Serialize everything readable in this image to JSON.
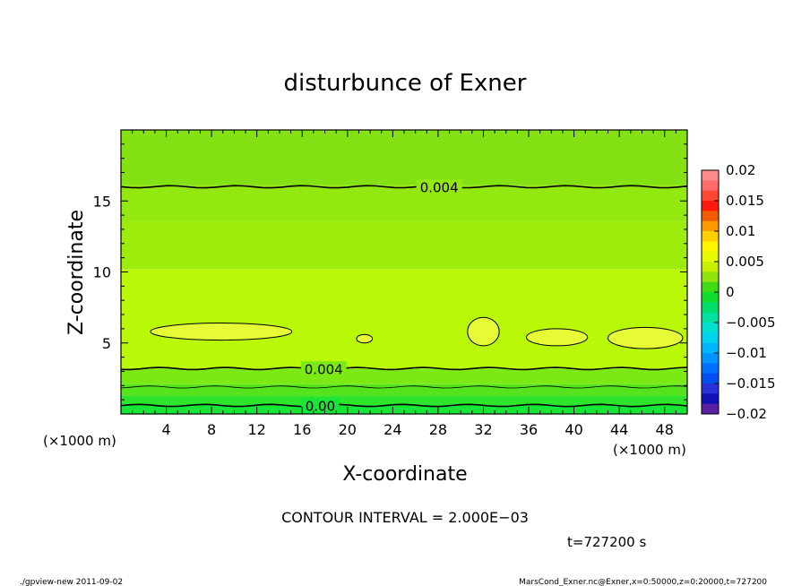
{
  "chart_data": {
    "type": "heatmap",
    "title": "disturbunce of Exner",
    "xlabel": "X-coordinate",
    "ylabel": "Z-coordinate",
    "x_unit": "(×1000 m)",
    "x_unit_right": "(×1000 m)",
    "xlim": [
      0,
      50
    ],
    "ylim": [
      0,
      20
    ],
    "xticks": [
      4,
      8,
      12,
      16,
      20,
      24,
      28,
      32,
      36,
      40,
      44,
      48
    ],
    "xtick_labels": [
      "4",
      "8",
      "12",
      "16",
      "20",
      "24",
      "28",
      "32",
      "36",
      "40",
      "44",
      "48"
    ],
    "yticks": [
      5,
      10,
      15
    ],
    "ytick_labels": [
      "5",
      "10",
      "15"
    ],
    "z_bands": [
      {
        "z_from": 0.0,
        "z_to": 0.6,
        "color": "#16e636"
      },
      {
        "z_from": 0.6,
        "z_to": 1.3,
        "color": "#2fe42c"
      },
      {
        "z_from": 1.3,
        "z_to": 2.1,
        "color": "#55e41c"
      },
      {
        "z_from": 2.1,
        "z_to": 3.2,
        "color": "#7bea14"
      },
      {
        "z_from": 3.2,
        "z_to": 10.2,
        "color": "#b9f806"
      },
      {
        "z_from": 10.2,
        "z_to": 13.6,
        "color": "#9cec0c"
      },
      {
        "z_from": 13.6,
        "z_to": 16.1,
        "color": "#92e80f"
      },
      {
        "z_from": 16.1,
        "z_to": 20.0,
        "color": "#84e214"
      }
    ],
    "contours": [
      {
        "level": 0.004,
        "label": "0.004",
        "z": 16.0,
        "label_x": 28.1
      },
      {
        "level": 0.004,
        "label": "0.004",
        "z": 3.2,
        "label_x": 17.9
      },
      {
        "level": 0.002,
        "label": "",
        "z": 1.9,
        "label_x": null
      },
      {
        "level": 0.0,
        "label": "0.00",
        "z": 0.6,
        "label_x": 17.6
      }
    ],
    "closed_regions": [
      {
        "x": [
          2.6,
          15.1
        ],
        "z": [
          5.2,
          6.4
        ]
      },
      {
        "x": [
          20.8,
          22.2
        ],
        "z": [
          5.0,
          5.6
        ]
      },
      {
        "x": [
          30.6,
          33.4
        ],
        "z": [
          4.8,
          6.8
        ]
      },
      {
        "x": [
          35.8,
          41.2
        ],
        "z": [
          4.8,
          6.0
        ]
      },
      {
        "x": [
          43.0,
          49.6
        ],
        "z": [
          4.6,
          6.1
        ]
      }
    ],
    "colorbar": {
      "ticks": [
        "0.02",
        "0.015",
        "0.01",
        "0.005",
        "0",
        "−0.005",
        "−0.01",
        "−0.015",
        "−0.02"
      ],
      "colors_top_to_bottom": [
        "#ff8c8c",
        "#ff6a6a",
        "#ff4630",
        "#ff1a0e",
        "#f05a00",
        "#ff9a00",
        "#ffd000",
        "#fff400",
        "#e8f800",
        "#c6f000",
        "#8ee40c",
        "#40dc14",
        "#12dc30",
        "#00dc6a",
        "#00e0a0",
        "#00e0d0",
        "#00d2f0",
        "#00b4ff",
        "#0096ff",
        "#0070ff",
        "#0050f0",
        "#2832d8",
        "#1010b4",
        "#5a1ea0"
      ]
    },
    "contour_interval_text": "CONTOUR INTERVAL = 2.000E−03",
    "time_text": "t=727200  s"
  },
  "footer": {
    "left": "./gpview-new   2011-09-02",
    "right": "MarsCond_Exner.nc@Exner,x=0:50000,z=0:20000,t=727200"
  }
}
